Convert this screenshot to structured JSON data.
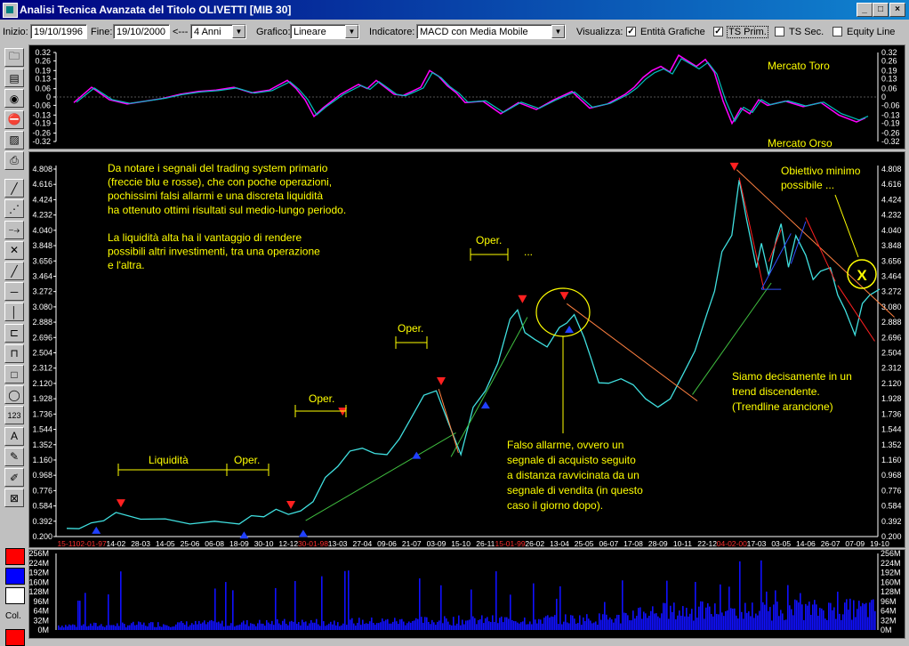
{
  "window": {
    "title": "Analisi Tecnica Avanzata del Titolo  OLIVETTI  [MIB 30]"
  },
  "toolbar": {
    "start_label": "Inizio:",
    "start_value": "19/10/1996",
    "end_label": "Fine:",
    "end_value": "19/10/2000",
    "back_label": "<---",
    "period_value": "4 Anni",
    "chart_label": "Grafico:",
    "chart_value": "Lineare",
    "indicator_label": "Indicatore:",
    "indicator_value": "MACD con Media Mobile",
    "view_label": "Visualizza:",
    "checks": [
      {
        "label": "Entità Grafiche",
        "checked": true
      },
      {
        "label": "TS Prim.",
        "checked": true
      },
      {
        "label": "TS Sec.",
        "checked": false
      },
      {
        "label": "Equity Line",
        "checked": false
      }
    ]
  },
  "sidebar": {
    "tools": [
      "folder-icon",
      "bar-chart-icon",
      "globe-icon",
      "stop-icon",
      "chart-icon",
      "printer-icon",
      "trendline-icon",
      "dotted-line-icon",
      "dash-line-icon",
      "cross-line-icon",
      "line-icon",
      "horizontal-line-icon",
      "vertical-line-icon",
      "channel-icon",
      "fibonacci-icon",
      "rectangle-icon",
      "circle-icon",
      "numbers-icon",
      "text-icon",
      "pen-icon",
      "eraser-icon",
      "delete-icon"
    ],
    "tool_glyphs": [
      "🗀",
      "▤",
      "◉",
      "⛔",
      "▨",
      "⎙",
      "╱",
      "⋰",
      "⤍",
      "✕",
      "╱",
      "─",
      "│",
      "⊏",
      "⊓",
      "□",
      "◯",
      "123",
      "A",
      "✎",
      "✐",
      "⊠"
    ],
    "colors": [
      "#ff0000",
      "#0000ff",
      "#ffffff",
      "#ff0000"
    ],
    "col_label": "Col."
  },
  "chart_data": [
    {
      "type": "line",
      "title": "",
      "series": [
        {
          "name": "MACD",
          "color": "#ff00ff"
        },
        {
          "name": "",
          "color": "#00c0c0"
        }
      ],
      "ylim": [
        -0.32,
        0.32
      ],
      "yticks": [
        "0.32",
        "0.26",
        "0.19",
        "0.13",
        "0.06",
        "0",
        "-0.06",
        "-0.13",
        "-0.19",
        "-0.26",
        "-0.32"
      ],
      "annotations": [
        "Mercato Toro",
        "Mercato Orso"
      ]
    },
    {
      "type": "line",
      "ylim": [
        0.2,
        4.808
      ],
      "yticks": [
        "4.808",
        "4.616",
        "4.424",
        "4.232",
        "4.040",
        "3.848",
        "3.656",
        "3.464",
        "3.272",
        "3.080",
        "2.888",
        "2.696",
        "2.504",
        "2.312",
        "2.120",
        "1.928",
        "1.736",
        "1.544",
        "1.352",
        "1.160",
        "0.968",
        "0.776",
        "0.584",
        "0.392",
        "0.200"
      ],
      "xticks": [
        "15-11",
        "02-01-97",
        "14-02",
        "28-03",
        "14-05",
        "25-06",
        "06-08",
        "18-09",
        "30-10",
        "12-12",
        "30-01-98",
        "13-03",
        "27-04",
        "09-06",
        "21-07",
        "03-09",
        "15-10",
        "26-11",
        "15-01-99",
        "26-02",
        "13-04",
        "25-05",
        "06-07",
        "17-08",
        "28-09",
        "10-11",
        "22-12",
        "04-02-00",
        "17-03",
        "03-05",
        "14-06",
        "26-07",
        "07-09",
        "19-10"
      ],
      "xticks_red": [
        0,
        1,
        10,
        18,
        27
      ],
      "price_series": {
        "name": "OLIVETTI",
        "x": [
          0,
          0.5,
          1,
          1.5,
          2,
          3,
          4,
          5,
          6,
          7,
          7.5,
          8,
          8.5,
          9,
          9.5,
          10,
          10.5,
          11,
          11.5,
          12,
          12.5,
          13,
          13.5,
          14,
          14.5,
          15,
          15.5,
          16,
          16.5,
          17,
          17.5,
          18,
          18.3,
          18.6,
          19,
          19.5,
          20,
          20.3,
          20.6,
          21,
          21.3,
          21.6,
          22,
          22.5,
          23,
          23.5,
          24,
          24.5,
          25,
          25.5,
          26,
          26.3,
          26.6,
          27,
          27.3,
          27.6,
          28,
          28.2,
          28.5,
          28.8,
          29,
          29.3,
          29.6,
          30,
          30.3,
          30.6,
          31,
          31.3,
          31.6,
          32,
          32.3,
          32.6,
          33
        ],
        "y": [
          0.28,
          0.32,
          0.35,
          0.42,
          0.48,
          0.44,
          0.4,
          0.38,
          0.37,
          0.38,
          0.44,
          0.47,
          0.52,
          0.5,
          0.5,
          0.66,
          0.92,
          1.1,
          1.25,
          1.33,
          1.22,
          1.25,
          1.4,
          1.72,
          1.95,
          2.05,
          1.6,
          1.25,
          1.8,
          2.05,
          2.35,
          2.95,
          3.02,
          2.78,
          2.65,
          2.6,
          2.8,
          2.9,
          2.96,
          2.72,
          2.4,
          2.15,
          2.1,
          2.2,
          2.08,
          1.95,
          1.8,
          1.95,
          2.2,
          2.55,
          2.98,
          3.3,
          3.75,
          4.0,
          4.65,
          4.2,
          3.55,
          3.9,
          3.45,
          3.95,
          4.1,
          3.6,
          3.95,
          3.75,
          3.4,
          3.55,
          3.55,
          3.25,
          3.02,
          2.75,
          3.1,
          3.25,
          3.28
        ]
      },
      "buy_signals": [
        [
          1.2,
          0.28
        ],
        [
          7.2,
          0.22
        ],
        [
          9.6,
          0.24
        ],
        [
          14.2,
          1.22
        ],
        [
          17,
          1.85
        ],
        [
          20.4,
          2.8
        ]
      ],
      "sell_signals": [
        [
          2.2,
          0.6
        ],
        [
          9.1,
          0.58
        ],
        [
          11.2,
          1.75
        ],
        [
          15.2,
          2.13
        ],
        [
          18.5,
          3.16
        ],
        [
          20.2,
          3.2
        ],
        [
          27.1,
          4.82
        ]
      ],
      "annotations": {
        "intro": [
          "Da notare i segnali del trading system primario",
          "(freccie blu e rosse), che con poche operazioni,",
          "pochissimi falsi allarmi e una discreta liquidità",
          "ha ottenuto ottimi risultati sul medio-lungo periodo.",
          "",
          "La liquidità alta ha il vantaggio di rendere",
          "possibili altri investimenti, tra una operazione",
          "e l'altra."
        ],
        "liquidity": "Liquidità",
        "oper": "Oper.",
        "ellipsis": "...",
        "false_alarm": [
          "Falso allarme, ovvero un",
          "segnale di acquisto seguito",
          "a distanza ravvicinata da un",
          "segnale di vendita (in questo",
          "caso il giorno dopo)."
        ],
        "trend": [
          "Siamo decisamente in un",
          "trend discendente.",
          "(Trendline arancione)"
        ],
        "target": [
          "Obiettivo minimo",
          "possibile ..."
        ],
        "target_mark": "X"
      }
    },
    {
      "type": "bar",
      "name": "Volume",
      "ylim": [
        0,
        256
      ],
      "yticks": [
        "256M",
        "224M",
        "192M",
        "160M",
        "128M",
        "96M",
        "64M",
        "32M",
        "0M"
      ]
    }
  ]
}
